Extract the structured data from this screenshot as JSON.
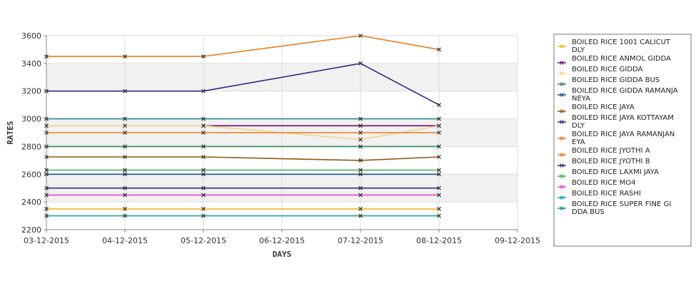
{
  "chart_data": {
    "type": "line",
    "xlabel": "DAYS",
    "ylabel": "RATES",
    "x_ticks": [
      "03-12-2015",
      "04-12-2015",
      "05-12-2015",
      "06-12-2015",
      "07-12-2015",
      "08-12-2015",
      "09-12-2015"
    ],
    "xlim": [
      "03-12-2015",
      "09-12-2015"
    ],
    "ylim": [
      2200,
      3600
    ],
    "y_ticks": [
      2200,
      2400,
      2600,
      2800,
      3000,
      3200,
      3400,
      3600
    ],
    "grid": true,
    "background_bands": "alternating grey horizontal bands every 200",
    "legend_position": "right",
    "series": [
      {
        "name": "BOILED RICE 1001 CALICUT DLY",
        "color": "#f0b429",
        "x": [
          "03-12-2015",
          "04-12-2015",
          "05-12-2015",
          "07-12-2015",
          "08-12-2015"
        ],
        "y": [
          2350,
          2350,
          2350,
          2350,
          2350
        ]
      },
      {
        "name": "BOILED RICE ANMOL GIDDA",
        "color": "#6a0d6a",
        "x": [
          "05-12-2015",
          "07-12-2015",
          "08-12-2015"
        ],
        "y": [
          2950,
          2950,
          2950
        ]
      },
      {
        "name": "BOILED RICE GIDDA",
        "color": "#f5d48c",
        "x": [
          "03-12-2015",
          "04-12-2015",
          "05-12-2015",
          "07-12-2015",
          "08-12-2015"
        ],
        "y": [
          2950,
          2950,
          2950,
          2850,
          2950
        ]
      },
      {
        "name": "BOILED RICE GIDDA BUS",
        "color": "#2e8b57",
        "x": [
          "03-12-2015",
          "04-12-2015",
          "05-12-2015",
          "07-12-2015",
          "08-12-2015"
        ],
        "y": [
          2800,
          2800,
          2800,
          2800,
          2800
        ]
      },
      {
        "name": "BOILED RICE GIDDA RAMANJANEYA",
        "color": "#1f4f8b",
        "x": [
          "03-12-2015",
          "04-12-2015",
          "05-12-2015",
          "07-12-2015",
          "08-12-2015"
        ],
        "y": [
          2600,
          2600,
          2600,
          2600,
          2600
        ]
      },
      {
        "name": "BOILED RICE JAYA",
        "color": "#8b5a14",
        "x": [
          "03-12-2015",
          "04-12-2015",
          "05-12-2015",
          "07-12-2015",
          "08-12-2015"
        ],
        "y": [
          2725,
          2725,
          2725,
          2700,
          2725
        ]
      },
      {
        "name": "BOILED RICE JAYA KOTTAYAM DLY",
        "color": "#2f2a85",
        "x": [
          "03-12-2015",
          "04-12-2015",
          "05-12-2015",
          "07-12-2015",
          "08-12-2015"
        ],
        "y": [
          3200,
          3200,
          3200,
          3400,
          3100
        ]
      },
      {
        "name": "BOILED RICE JAYA RAMANJANEYA",
        "color": "#e67e22",
        "x": [
          "03-12-2015",
          "04-12-2015",
          "05-12-2015",
          "07-12-2015",
          "08-12-2015"
        ],
        "y": [
          3450,
          3450,
          3450,
          3600,
          3500
        ]
      },
      {
        "name": "BOILED RICE JYOTHI A",
        "color": "#e67e22",
        "x": [
          "03-12-2015",
          "04-12-2015",
          "05-12-2015",
          "07-12-2015",
          "08-12-2015"
        ],
        "y": [
          2900,
          2900,
          2900,
          2900,
          2900
        ]
      },
      {
        "name": "BOILED RICE JYOTHI B",
        "color": "#2f2a85",
        "x": [
          "03-12-2015",
          "04-12-2015",
          "05-12-2015",
          "07-12-2015",
          "08-12-2015"
        ],
        "y": [
          2500,
          2500,
          2500,
          2500,
          2500
        ]
      },
      {
        "name": "BOILED RICE LAXMI JAYA",
        "color": "#3cb44b",
        "x": [
          "03-12-2015",
          "04-12-2015",
          "05-12-2015",
          "07-12-2015",
          "08-12-2015"
        ],
        "y": [
          2630,
          2630,
          2630,
          2630,
          2630
        ]
      },
      {
        "name": "BOILED RICE MO4",
        "color": "#e64ad2",
        "x": [
          "03-12-2015",
          "04-12-2015",
          "05-12-2015",
          "07-12-2015",
          "08-12-2015"
        ],
        "y": [
          2450,
          2450,
          2450,
          2450,
          2450
        ]
      },
      {
        "name": "BOILED RICE RASHI",
        "color": "#1aa39a",
        "x": [
          "03-12-2015",
          "04-12-2015",
          "05-12-2015",
          "07-12-2015",
          "08-12-2015"
        ],
        "y": [
          2300,
          2300,
          2300,
          2300,
          2300
        ]
      },
      {
        "name": "BOILED RICE SUPER FINE GIDDA BUS",
        "color": "#2a8a8a",
        "x": [
          "03-12-2015",
          "04-12-2015",
          "05-12-2015",
          "07-12-2015",
          "08-12-2015"
        ],
        "y": [
          3000,
          3000,
          3000,
          3000,
          3000
        ]
      }
    ],
    "legend_labels": [
      [
        "BOILED RICE 1001 CALICUT",
        "DLY"
      ],
      [
        "BOILED RICE ANMOL GIDDA"
      ],
      [
        "BOILED RICE GIDDA"
      ],
      [
        "BOILED RICE GIDDA BUS"
      ],
      [
        "BOILED RICE GIDDA RAMANJA",
        "NEYA"
      ],
      [
        "BOILED RICE JAYA"
      ],
      [
        "BOILED RICE JAYA KOTTAYAM",
        " DLY"
      ],
      [
        "BOILED RICE JAYA RAMANJAN",
        "EYA"
      ],
      [
        "BOILED RICE JYOTHI A"
      ],
      [
        "BOILED RICE JYOTHI B"
      ],
      [
        "BOILED RICE LAXMI JAYA"
      ],
      [
        "BOILED RICE MO4"
      ],
      [
        "BOILED RICE RASHI"
      ],
      [
        "BOILED RICE SUPER FINE GI",
        "DDA BUS"
      ]
    ]
  }
}
